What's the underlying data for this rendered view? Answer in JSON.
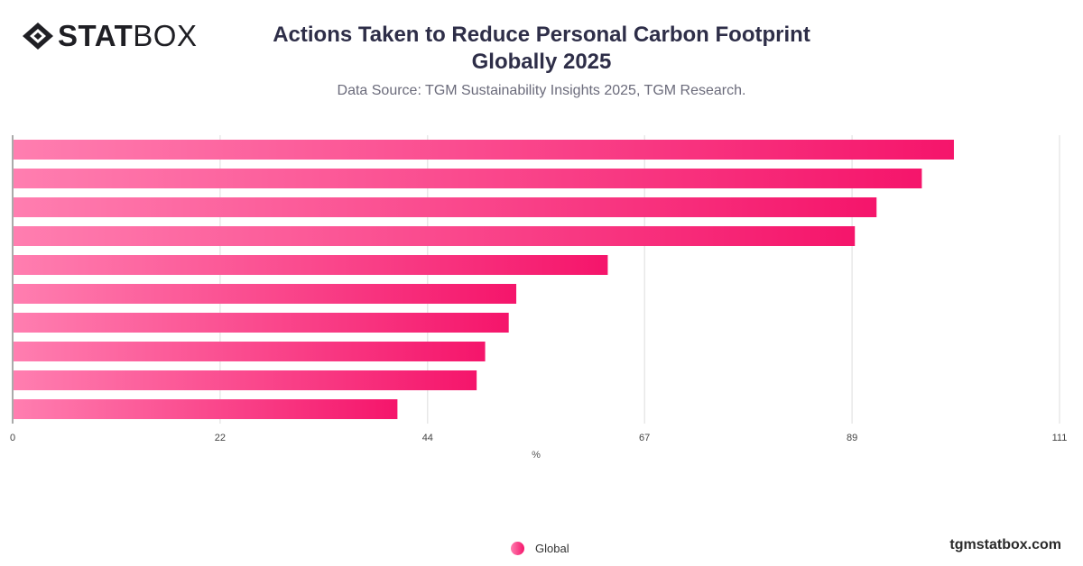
{
  "brand": {
    "name_bold": "STAT",
    "name_light": "BOX"
  },
  "header": {
    "title_line1": "Actions Taken to Reduce Personal Carbon Footprint",
    "title_line2": "Globally  2025",
    "subtitle": "Data Source: TGM Sustainability Insights 2025, TGM Research."
  },
  "chart_data": {
    "type": "bar",
    "orientation": "horizontal",
    "xlabel": "%",
    "xlim": [
      0,
      111
    ],
    "xticks": [
      0,
      22,
      44,
      67,
      89,
      111
    ],
    "grid": true,
    "series": [
      {
        "name": "Global",
        "values": [
          99.8,
          96.4,
          91.6,
          89.3,
          63.1,
          53.4,
          52.6,
          50.1,
          49.2,
          40.8
        ]
      }
    ],
    "colors": {
      "bar_start": "#ff7eb0",
      "bar_end": "#f5156b",
      "grid": "#dddddd",
      "axis": "#555555"
    },
    "legend": {
      "position": "bottom"
    }
  },
  "footer": {
    "site": "tgmstatbox.com"
  }
}
